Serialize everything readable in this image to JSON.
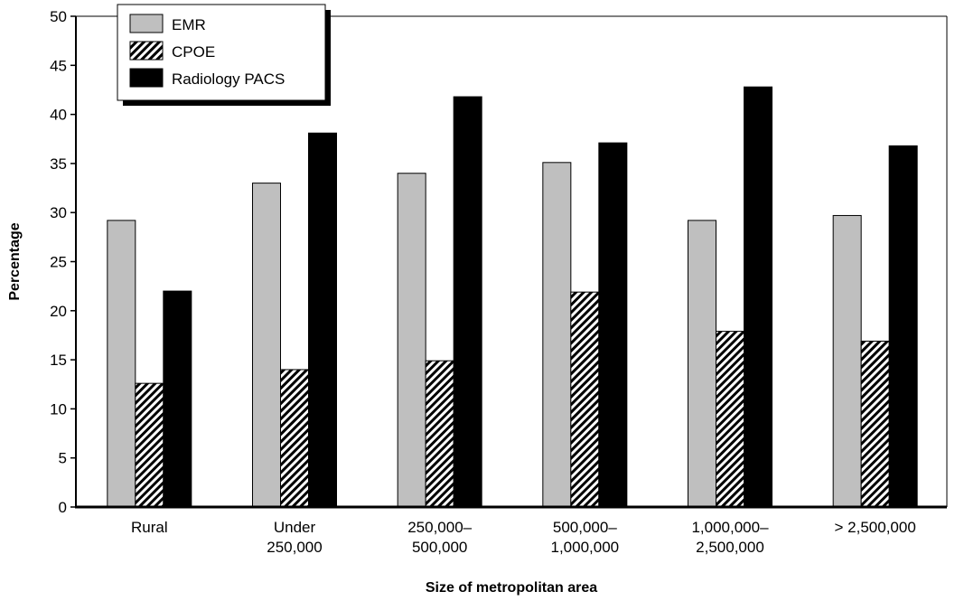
{
  "chart_data": {
    "type": "bar",
    "title": "",
    "xlabel": "Size of metropolitan area",
    "ylabel": "Percentage",
    "ylim": [
      0,
      50
    ],
    "yticks": [
      "0",
      "5",
      "10",
      "15",
      "20",
      "25",
      "30",
      "35",
      "40",
      "45",
      "50"
    ],
    "categories": [
      [
        "Rural"
      ],
      [
        "Under",
        "250,000"
      ],
      [
        "250,000–",
        "500,000"
      ],
      [
        "500,000–",
        "1,000,000"
      ],
      [
        "1,000,000–",
        "2,500,000"
      ],
      [
        "> 2,500,000"
      ]
    ],
    "series": [
      {
        "name": "EMR",
        "fill": "#bfbfbf",
        "pattern": "solid-gray",
        "values": [
          29.2,
          33.0,
          34.0,
          35.1,
          29.2,
          29.7
        ]
      },
      {
        "name": "CPOE",
        "fill": "#ffffff",
        "pattern": "diagonal-hatch",
        "values": [
          12.6,
          14.0,
          14.9,
          21.9,
          17.9,
          16.9
        ]
      },
      {
        "name": "Radiology PACS",
        "fill": "#000000",
        "pattern": "solid-black",
        "values": [
          22.0,
          38.1,
          41.8,
          37.1,
          42.8,
          36.8
        ]
      }
    ],
    "grid": false,
    "legend_position": "top-left"
  }
}
